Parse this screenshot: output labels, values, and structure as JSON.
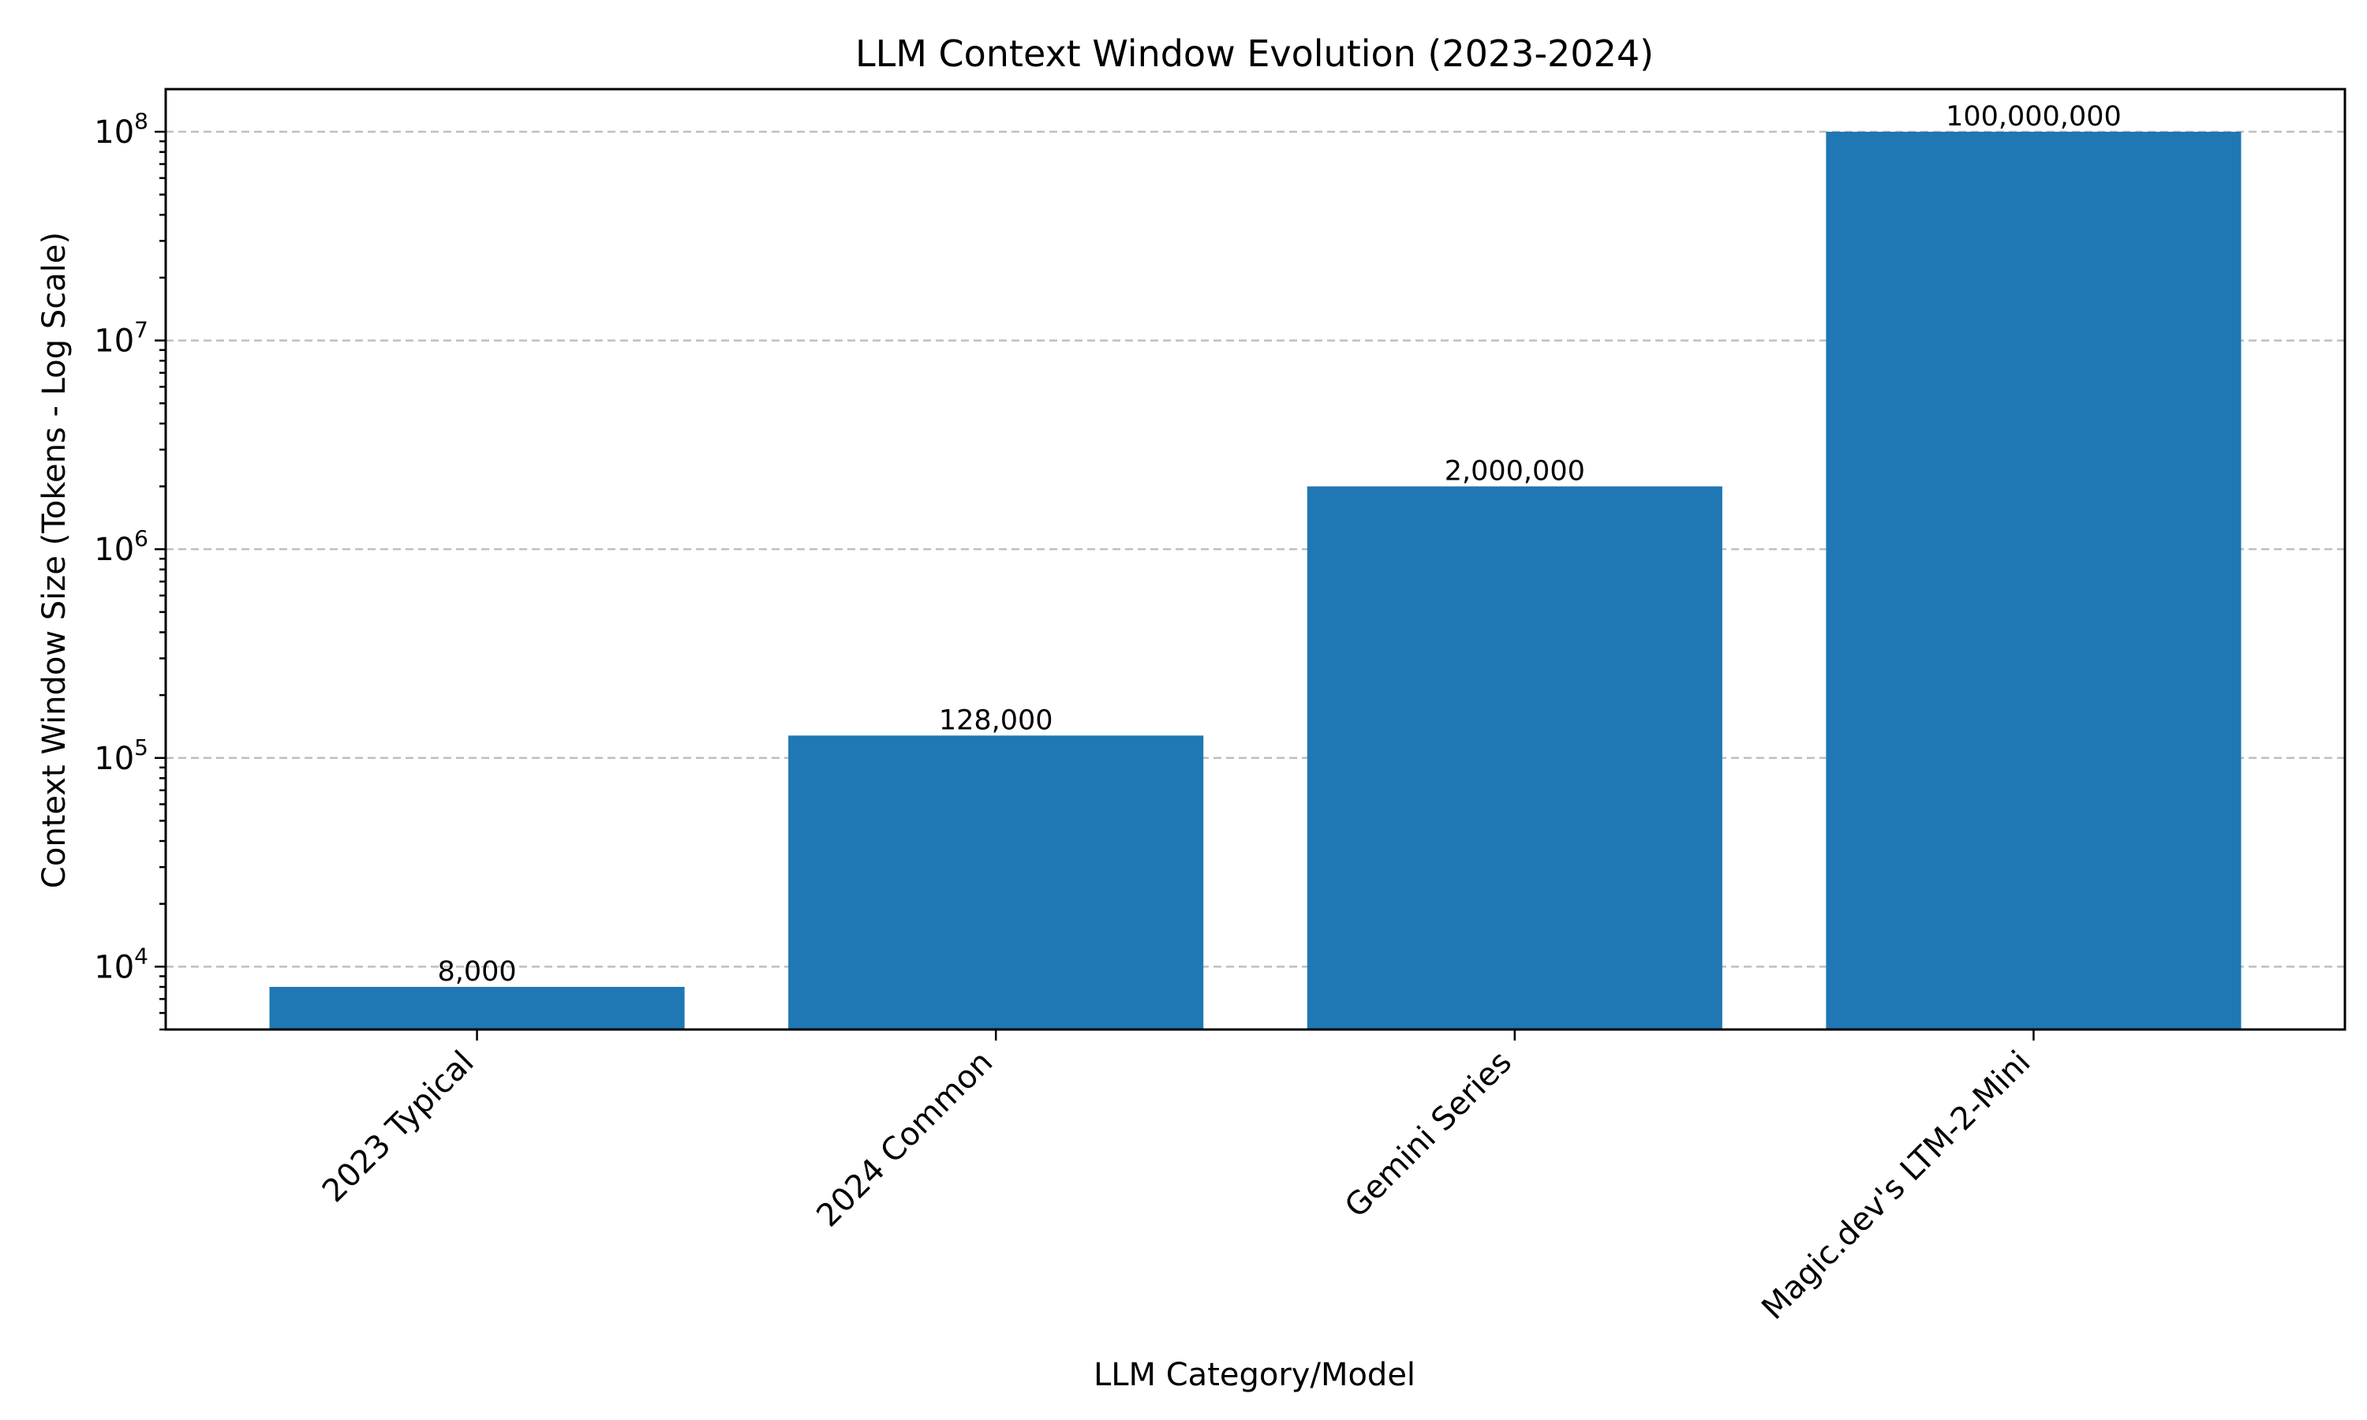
{
  "chart_data": {
    "type": "bar",
    "title": "LLM Context Window Evolution (2023-2024)",
    "xlabel": "LLM Category/Model",
    "ylabel": "Context Window Size (Tokens - Log Scale)",
    "yscale": "log",
    "ylim": [
      5000,
      160000000
    ],
    "yticks": [
      10000,
      100000,
      1000000,
      10000000,
      100000000
    ],
    "ytick_labels": [
      {
        "base": "10",
        "exp": "4"
      },
      {
        "base": "10",
        "exp": "5"
      },
      {
        "base": "10",
        "exp": "6"
      },
      {
        "base": "10",
        "exp": "7"
      },
      {
        "base": "10",
        "exp": "8"
      }
    ],
    "grid": "y-dashed",
    "bar_color": "#1f77b4",
    "categories": [
      "2023 Typical",
      "2024 Common",
      "Gemini Series",
      "Magic.dev's LTM-2-Mini"
    ],
    "values": [
      8000,
      128000,
      2000000,
      100000000
    ],
    "data_labels": [
      "8,000",
      "128,000",
      "2,000,000",
      "100,000,000"
    ]
  }
}
